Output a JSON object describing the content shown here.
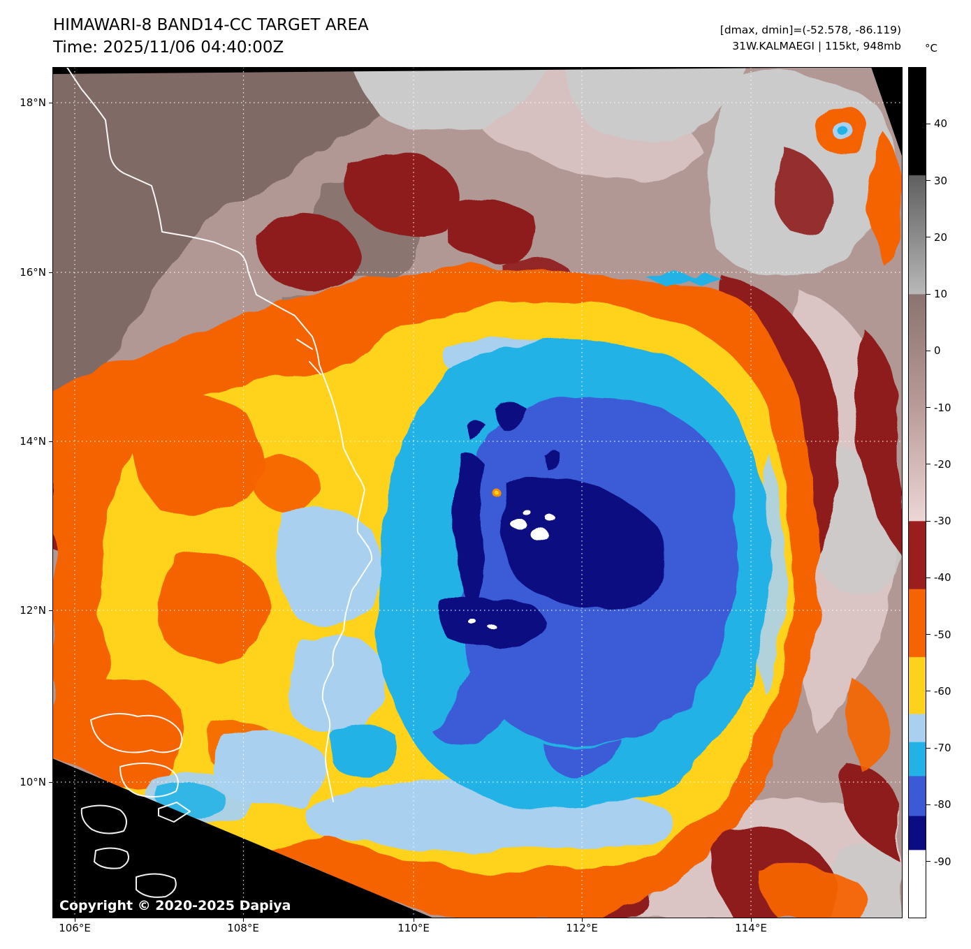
{
  "header": {
    "title": "HIMAWARI-8 BAND14-CC TARGET AREA",
    "time": "Time: 2025/11/06 04:40:00Z",
    "dmax_dmin": "[dmax, dmin]=(-52.578, -86.119)",
    "storm": "31W.KALMAEGI | 115kt, 948mb"
  },
  "map": {
    "copyright": "Copyright © 2020-2025 Dapiya"
  },
  "axes": {
    "x_ticks": [
      "106°E",
      "108°E",
      "110°E",
      "112°E",
      "114°E"
    ],
    "y_ticks": [
      "18°N",
      "16°N",
      "14°N",
      "12°N",
      "10°N"
    ]
  },
  "colorbar": {
    "unit": "°C",
    "domain": [
      50,
      -100
    ],
    "ticks": [
      40,
      30,
      20,
      10,
      0,
      -10,
      -20,
      -30,
      -40,
      -50,
      -60,
      -70,
      -80,
      -90
    ],
    "stops": [
      {
        "p": 0,
        "c": "#000000"
      },
      {
        "p": 12.6,
        "c": "#000000"
      },
      {
        "p": 12.7,
        "c": "#606060"
      },
      {
        "p": 20,
        "c": "#8c8c8c"
      },
      {
        "p": 26.6,
        "c": "#b8b8b8"
      },
      {
        "p": 26.7,
        "c": "#8a7370"
      },
      {
        "p": 40,
        "c": "#b99c9a"
      },
      {
        "p": 53.3,
        "c": "#ecd6d6"
      },
      {
        "p": 53.4,
        "c": "#9a1e1e"
      },
      {
        "p": 61.3,
        "c": "#9a1e1e"
      },
      {
        "p": 61.4,
        "c": "#f56400"
      },
      {
        "p": 69.3,
        "c": "#f56400"
      },
      {
        "p": 69.4,
        "c": "#ffd21e"
      },
      {
        "p": 76,
        "c": "#ffd21e"
      },
      {
        "p": 76.1,
        "c": "#a9d1ef"
      },
      {
        "p": 79.3,
        "c": "#a9d1ef"
      },
      {
        "p": 79.4,
        "c": "#22b2e6"
      },
      {
        "p": 83.3,
        "c": "#22b2e6"
      },
      {
        "p": 83.4,
        "c": "#3b5bd6"
      },
      {
        "p": 88,
        "c": "#3b5bd6"
      },
      {
        "p": 88.1,
        "c": "#0b0b82"
      },
      {
        "p": 92,
        "c": "#0b0b82"
      },
      {
        "p": 92.1,
        "c": "#ffffff"
      },
      {
        "p": 100,
        "c": "#ffffff"
      }
    ]
  },
  "colors": {
    "void_black": "#000000",
    "warm_base": "#b29894",
    "land": "#7f6b65",
    "pink": "#dac4c4",
    "cloud_gray": "#cbcbcb",
    "maroon": "#8f1c1c",
    "orange": "#f56400",
    "yellow": "#ffd21e",
    "pale_blue": "#a9d1ef",
    "cyan": "#22b2e6",
    "royal_blue": "#3b5bd6",
    "navy": "#0b0b82",
    "cold_white": "#ffffff",
    "eye_warm": "#f59000"
  }
}
